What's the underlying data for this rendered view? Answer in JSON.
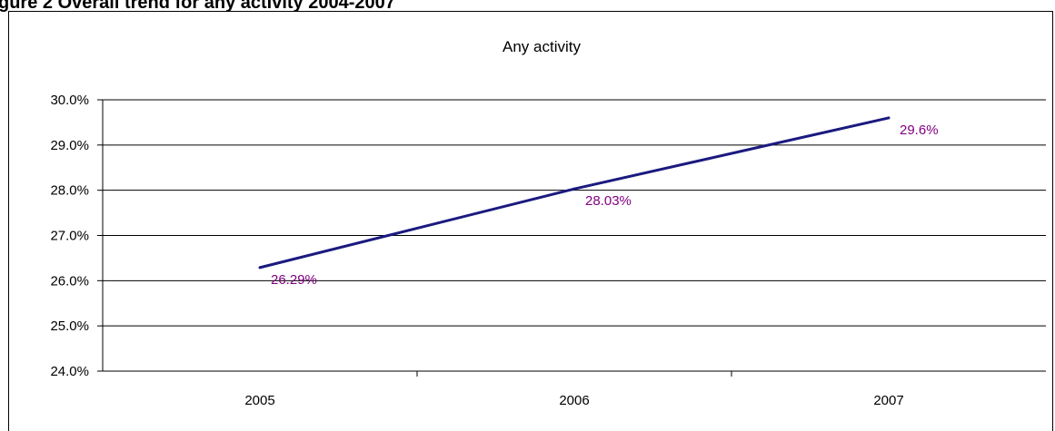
{
  "figure_heading": "gure 2 Overall trend for any activity 2004-2007",
  "chart_data": {
    "type": "line",
    "title": "Any activity",
    "categories": [
      "2005",
      "2006",
      "2007"
    ],
    "series": [
      {
        "values": [
          26.29,
          28.03,
          29.6
        ],
        "labels": [
          "26.29%",
          "28.03%",
          "29.6%"
        ]
      }
    ],
    "ylim": [
      24.0,
      30.0
    ],
    "yticks": [
      24.0,
      25.0,
      26.0,
      27.0,
      28.0,
      29.0,
      30.0
    ],
    "ytick_labels": [
      "24.0%",
      "25.0%",
      "26.0%",
      "27.0%",
      "28.0%",
      "29.0%",
      "30.0%"
    ],
    "grid": true,
    "legend": "none",
    "line_color": "#1a1a80",
    "label_color": "#800080"
  }
}
